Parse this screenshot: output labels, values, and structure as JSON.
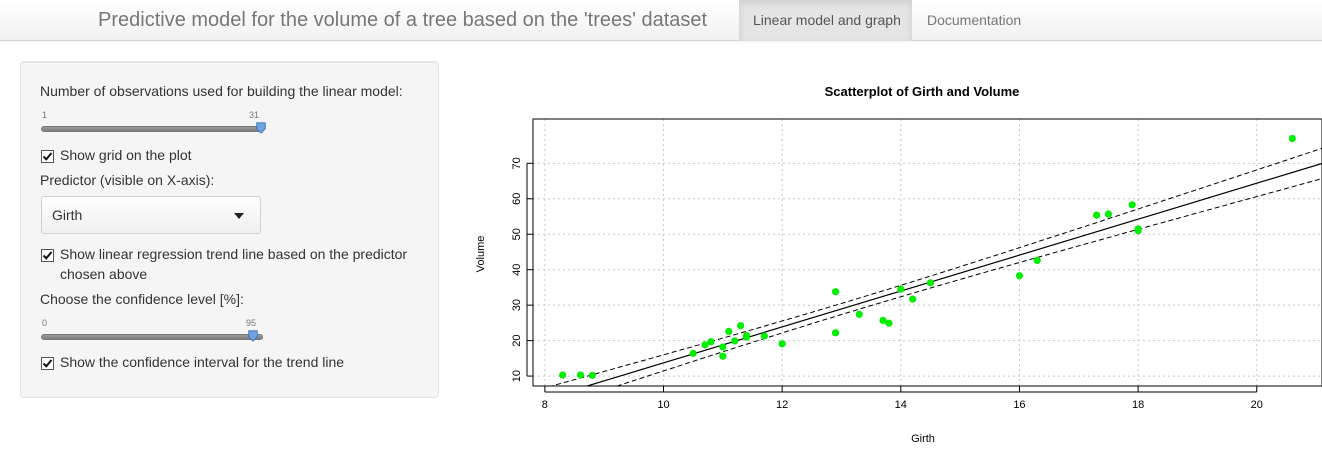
{
  "navbar": {
    "title": "Predictive model for the volume of a tree based on the 'trees' dataset",
    "tabs": [
      {
        "label": "Linear model and graph",
        "active": true
      },
      {
        "label": "Documentation",
        "active": false
      }
    ]
  },
  "sidebar": {
    "obs_slider": {
      "label": "Number of observations used for building the linear model:",
      "min": "1",
      "max": "31",
      "value": 31
    },
    "show_grid": {
      "label": "Show grid on the plot",
      "checked": true
    },
    "predictor": {
      "label": "Predictor (visible on X-axis):",
      "selected": "Girth"
    },
    "show_trend": {
      "label_line1": "Show linear regression trend line based on the predictor",
      "label_line2": "chosen above",
      "checked": true
    },
    "conf_slider": {
      "label": "Choose the confidence level [%]:",
      "min": "0",
      "max": "95",
      "value": 95
    },
    "show_ci": {
      "label": "Show the confidence interval for the trend line",
      "checked": true
    }
  },
  "chart_data": {
    "type": "scatter",
    "title": "Scatterplot of Girth and Volume",
    "xlabel": "Girth",
    "ylabel": "Volume",
    "xlim": [
      7.8,
      21.1
    ],
    "ylim": [
      7.2,
      82.5
    ],
    "xticks": [
      8,
      10,
      12,
      14,
      16,
      18,
      20
    ],
    "yticks": [
      10,
      20,
      30,
      40,
      50,
      60,
      70
    ],
    "grid": true,
    "point_color": "#00ee00",
    "points": [
      [
        8.3,
        10.3
      ],
      [
        8.6,
        10.3
      ],
      [
        8.8,
        10.2
      ],
      [
        10.5,
        16.4
      ],
      [
        10.7,
        18.8
      ],
      [
        10.8,
        19.7
      ],
      [
        11.0,
        15.6
      ],
      [
        11.0,
        18.2
      ],
      [
        11.1,
        22.6
      ],
      [
        11.2,
        19.9
      ],
      [
        11.3,
        24.2
      ],
      [
        11.4,
        21.0
      ],
      [
        11.4,
        21.4
      ],
      [
        11.7,
        21.3
      ],
      [
        12.0,
        19.1
      ],
      [
        12.9,
        22.2
      ],
      [
        12.9,
        33.8
      ],
      [
        13.3,
        27.4
      ],
      [
        13.7,
        25.7
      ],
      [
        13.8,
        24.9
      ],
      [
        14.0,
        34.5
      ],
      [
        14.2,
        31.7
      ],
      [
        14.5,
        36.3
      ],
      [
        16.0,
        38.3
      ],
      [
        16.3,
        42.6
      ],
      [
        17.3,
        55.4
      ],
      [
        17.5,
        55.7
      ],
      [
        17.9,
        58.3
      ],
      [
        18.0,
        51.5
      ],
      [
        18.0,
        51.0
      ],
      [
        20.6,
        77.0
      ]
    ],
    "trend_line": {
      "intercept": -36.94,
      "slope": 5.066
    },
    "confidence_level": 95,
    "confidence_band": {
      "n": 31,
      "mean_x": 13.248,
      "sxx": 295.44,
      "sigma": 4.252,
      "t": 2.045
    }
  }
}
